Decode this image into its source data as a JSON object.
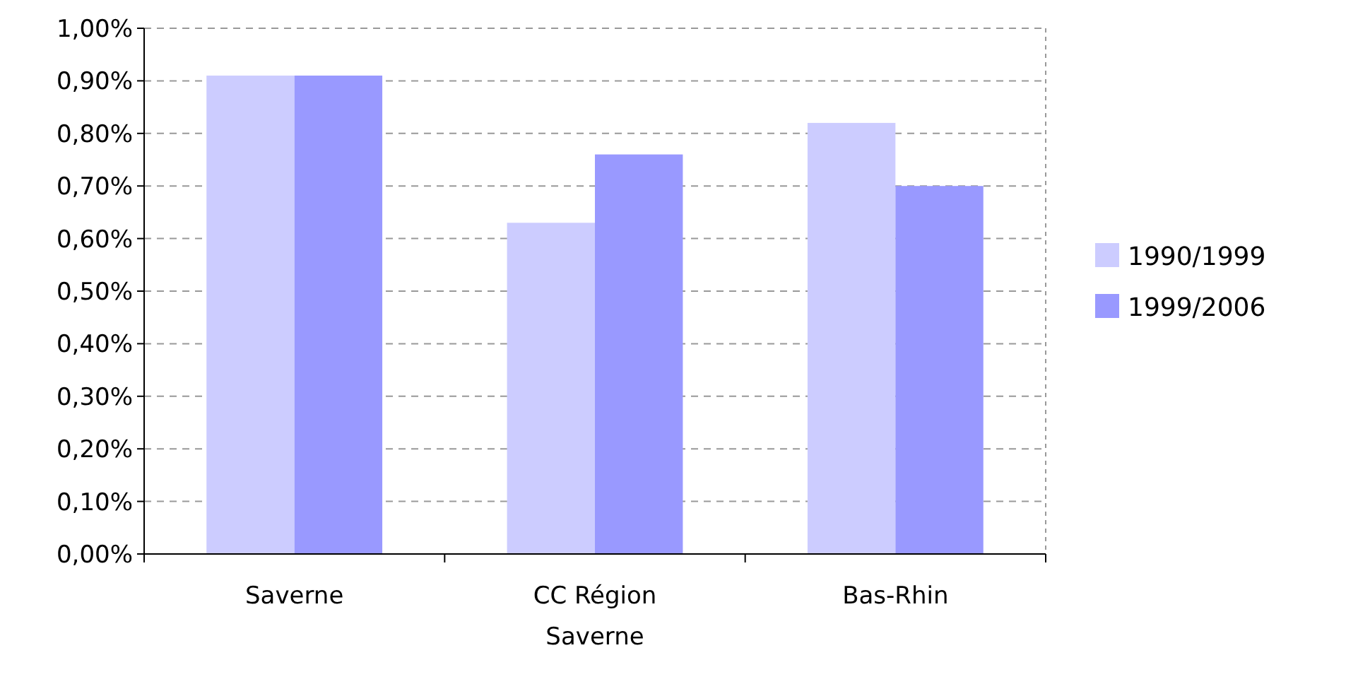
{
  "chart_data": {
    "type": "bar",
    "categories": [
      "Saverne",
      "CC Région Saverne",
      "Bas-Rhin"
    ],
    "series": [
      {
        "name": "1990/1999",
        "color": "#ccccff",
        "values": [
          0.91,
          0.63,
          0.82
        ]
      },
      {
        "name": "1999/2006",
        "color": "#9999ff",
        "values": [
          0.91,
          0.76,
          0.7
        ]
      }
    ],
    "ylim": [
      0,
      1
    ],
    "yticks": [
      {
        "value": 0,
        "label": "0,00%"
      },
      {
        "value": 0.1,
        "label": "0,10%"
      },
      {
        "value": 0.2,
        "label": "0,20%"
      },
      {
        "value": 0.3,
        "label": "0,30%"
      },
      {
        "value": 0.4,
        "label": "0,40%"
      },
      {
        "value": 0.5,
        "label": "0,50%"
      },
      {
        "value": 0.6,
        "label": "0,60%"
      },
      {
        "value": 0.7,
        "label": "0,70%"
      },
      {
        "value": 0.8,
        "label": "0,80%"
      },
      {
        "value": 0.9,
        "label": "0,90%"
      },
      {
        "value": 1,
        "label": "1,00%"
      }
    ],
    "grid": "y",
    "legend": "right"
  }
}
